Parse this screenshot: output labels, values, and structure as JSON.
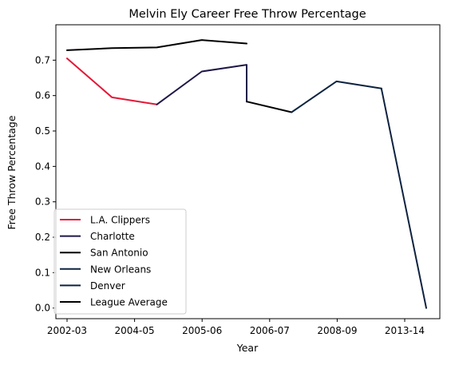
{
  "chart_data": {
    "type": "line",
    "title": "Melvin Ely Career Free Throw Percentage",
    "xlabel": "Year",
    "ylabel": "Free Throw Percentage",
    "xticks": [
      "2002-03",
      "2004-05",
      "2005-06",
      "2006-07",
      "2008-09",
      "2013-14"
    ],
    "yticks": [
      "0.0",
      "0.1",
      "0.2",
      "0.3",
      "0.4",
      "0.5",
      "0.6",
      "0.7"
    ],
    "ylim": [
      -0.03,
      0.8
    ],
    "x_positions": {
      "2002-03": 0,
      "2003-04": 1,
      "2004-05": 2,
      "2005-06": 3,
      "2006-07": 4,
      "2007-08": 5,
      "2008-09": 6,
      "2009-10": 7,
      "2013-14": 8
    },
    "grid": false,
    "legend_position": "lower left",
    "series": [
      {
        "name": "L.A. Clippers",
        "color": "#E31837",
        "points": [
          [
            "2002-03",
            0.705
          ],
          [
            "2003-04",
            0.595
          ],
          [
            "2004-05",
            0.575
          ]
        ]
      },
      {
        "name": "Charlotte",
        "color": "#201747",
        "points": [
          [
            "2004-05",
            0.575
          ],
          [
            "2005-06",
            0.668
          ],
          [
            "2006-07",
            0.687
          ],
          [
            "2006-07",
            0.583
          ]
        ]
      },
      {
        "name": "San Antonio",
        "color": "#000000",
        "points": [
          [
            "2006-07",
            0.583
          ],
          [
            "2007-08",
            0.553
          ]
        ]
      },
      {
        "name": "New Orleans",
        "color": "#0C2340",
        "points": [
          [
            "2007-08",
            0.553
          ],
          [
            "2008-09",
            0.64
          ],
          [
            "2009-10",
            0.62
          ]
        ]
      },
      {
        "name": "Denver",
        "color": "#0E2240",
        "points": [
          [
            "2009-10",
            0.62
          ],
          [
            "2013-14",
            0.0
          ]
        ]
      },
      {
        "name": "League Average",
        "color": "#000000",
        "points": [
          [
            "2002-03",
            0.728
          ],
          [
            "2003-04",
            0.734
          ],
          [
            "2004-05",
            0.736
          ],
          [
            "2005-06",
            0.757
          ],
          [
            "2006-07",
            0.747
          ]
        ]
      }
    ]
  }
}
